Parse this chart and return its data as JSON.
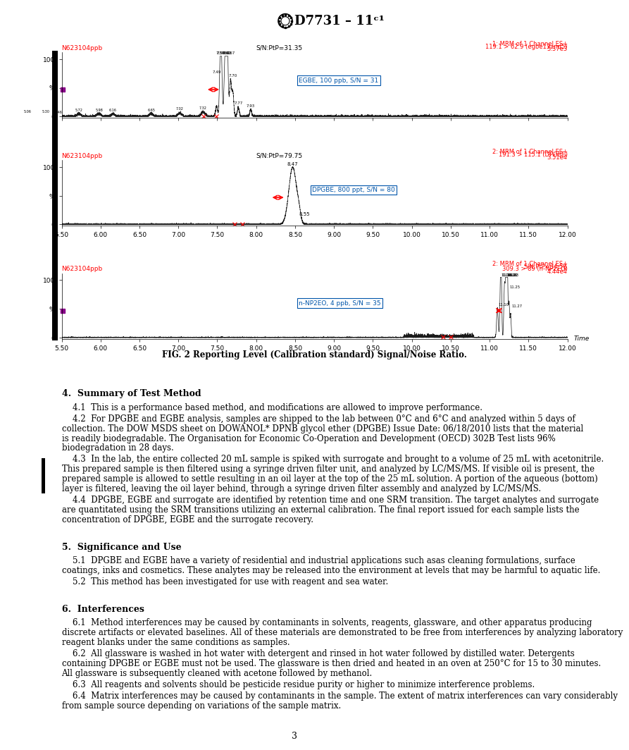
{
  "title": "D7731 – 11ᶜ¹",
  "page_num": "3",
  "fig_caption": "FIG. 2 Reporting Level (Calibration standard) Signal/Noise Ratio.",
  "chart1": {
    "label_top_left": "N623104ppb",
    "label_top_right_line1": "1: MRM of 1 Channel ES+",
    "label_top_right_line2": "119.1 > 62.9 (egbe13and5)",
    "label_top_right_line3": "5.37e3",
    "snptp": "S/N:PtP=31.35",
    "annotation": "EGBE, 100 ppb, S/N = 31",
    "xmin": 5.5,
    "xmax": 12.0
  },
  "chart2": {
    "label_top_left": "N623104ppb",
    "label_top_right_line1": "2: MRM of 1 Channel ES+",
    "label_top_right_line2": "191.3 > 115.1 (DPGBE)",
    "label_top_right_line3": "3.51e4",
    "snptp": "S/N:PtP=79.75",
    "annotation": "DPGBE, 800 ppt, S/N = 80",
    "xmin": 5.5,
    "xmax": 12.0
  },
  "chart3": {
    "label_top_left": "N623104ppb",
    "label_top_right_line1": "2: MRM of 1 Channel ES+",
    "label_top_right_line2": "S/N:PtP=34.58",
    "label_top_right_line3": "309.3 > 89 (n-NP2EO)",
    "label_top_right_line4": "4.44e4",
    "annotation": "n-NP2EO, 4 ppb, S/N = 35",
    "xmin": 5.5,
    "xmax": 12.0
  },
  "xtick_labels": [
    "5.50",
    "6.00",
    "6.50",
    "7.00",
    "7.50",
    "8.00",
    "8.50",
    "9.00",
    "9.50",
    "10.00",
    "10.50",
    "11.00",
    "11.50",
    "12.00"
  ],
  "xtick_vals": [
    5.5,
    6.0,
    6.5,
    7.0,
    7.5,
    8.0,
    8.5,
    9.0,
    9.5,
    10.0,
    10.5,
    11.0,
    11.5,
    12.0
  ],
  "sections": [
    {
      "heading": "4.  Summary of Test Method",
      "paragraphs": [
        "    4.1  This is a performance based method, and modifications are allowed to improve performance.",
        "    4.2  For DPGBE and EGBE analysis, samples are shipped to the lab between 0°C and 6°C and analyzed within 5 days of\ncollection. The DOW MSDS sheet on DOWANOL* DPNB glycol ether (DPGBE) Issue Date: 06/18/2010 lists that the material\nis readily biodegradable. The Organisation for Economic Co-Operation and Development (OECD) 302B Test lists 96%\nbiodegradation in 28 days.",
        "    4.3  In the lab, the entire collected 20 mL sample is spiked with surrogate and brought to a volume of 25 mL with acetonitrile.\nThis prepared sample is then filtered using a syringe driven filter unit, and analyzed by LC/MS/MS. If visible oil is present, the\nprepared sample is allowed to settle resulting in an oil layer at the top of the 25 mL solution. A portion of the aqueous (bottom)\nlayer is filtered, leaving the oil layer behind, through a syringe driven filter assembly and analyzed by LC/MS/MS.",
        "    4.4  DPGBE, EGBE and surrogate are identified by retention time and one SRM transition. The target analytes and surrogate\nare quantitated using the SRM transitions utilizing an external calibration. The final report issued for each sample lists the\nconcentration of DPGBE, EGBE and the surrogate recovery."
      ]
    },
    {
      "heading": "5.  Significance and Use",
      "paragraphs": [
        "    5.1  DPGBE and EGBE have a variety of residential and industrial applications such as~as cleaning formulations, surface\ncoatings, inks and cosmetics. These analytes may be released into the environment at levels that may be harmful to aquatic life.",
        "    5.2  This method has been investigated for use with reagent and sea water."
      ]
    },
    {
      "heading": "6.  Interferences",
      "paragraphs": [
        "    6.1  Method interferences may be caused by contaminants in solvents, reagents, glassware, and other apparatus producing\ndiscrete artifacts or elevated baselines. All of these materials are demonstrated to be free from interferences by analyzing laboratory\nreagent blanks under the same conditions as samples.",
        "    6.2  All glassware is washed in hot water with detergent and rinsed in hot water followed by distilled water. Detergents\ncontaining DPGBE or EGBE must not be used. The glassware is then dried and heated in an oven at 250°C for 15 to 30 minutes.\nAll glassware is subsequently cleaned with acetone followed by methanol.",
        "    6.3  All reagents and solvents should be pesticide residue purity or higher to minimize interference problems.",
        "    6.4  Matrix interferences may be caused by contaminants in the sample. The extent of matrix interferences can vary considerably\nfrom sample source depending on variations of the sample matrix."
      ]
    }
  ],
  "colors": {
    "red": "#FF0000",
    "black": "#000000",
    "blue_ann": "#0055AA",
    "background": "#FFFFFF",
    "chart_line": "#1a1a1a",
    "red_marker": "#CC0000"
  }
}
